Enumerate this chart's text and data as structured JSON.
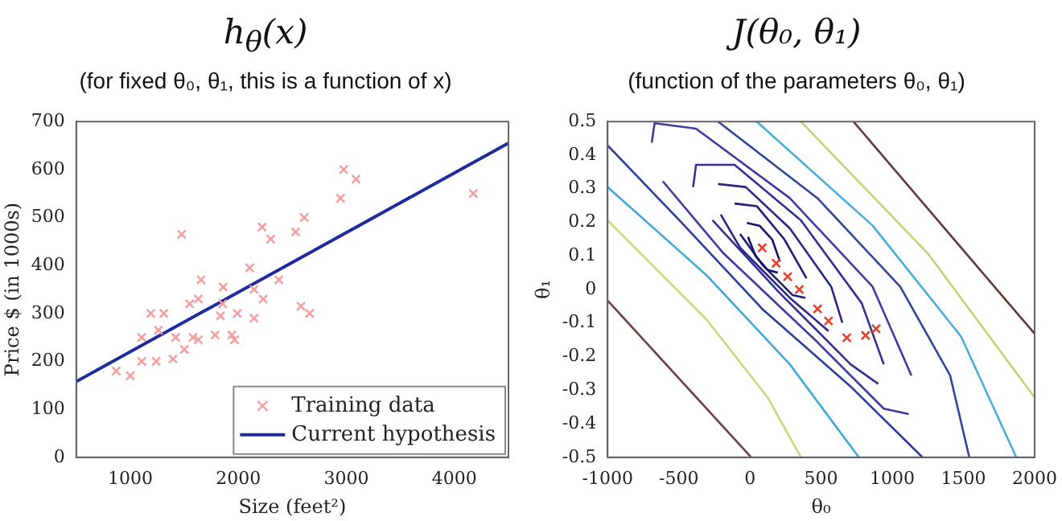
{
  "chart_data": [
    {
      "type": "scatter",
      "title": "h$_{θ}$(x)",
      "subtitle": "(for fixed θ₀, θ₁, this is a function of x)",
      "xlabel": "Size (feet²)",
      "ylabel": "Price $ (in 1000s)",
      "xlim": [
        500,
        4500
      ],
      "xticks": [
        1000,
        2000,
        3000,
        4000
      ],
      "ylim": [
        0,
        700
      ],
      "yticks": [
        0,
        100,
        200,
        300,
        400,
        500,
        600,
        700
      ],
      "grid": false,
      "legend": "bottom right",
      "series": [
        {
          "name": "Training data",
          "type": "scatter",
          "marker": "cross",
          "color": "#f2a0a0",
          "x": [
            1000,
            870,
            1105,
            1190,
            1310,
            1260,
            1105,
            1240,
            1395,
            1420,
            1500,
            1475,
            1550,
            1630,
            1655,
            1580,
            1630,
            1785,
            1855,
            1860,
            1835,
            1940,
            1965,
            1990,
            2105,
            2145,
            2220,
            2230,
            2300,
            2375,
            2530,
            2610,
            2580,
            2660,
            2945,
            2975,
            3090,
            4175,
            2145
          ],
          "values": [
            170,
            180,
            250,
            300,
            300,
            265,
            200,
            200,
            205,
            250,
            225,
            465,
            320,
            330,
            370,
            250,
            245,
            255,
            320,
            355,
            295,
            255,
            245,
            300,
            395,
            290,
            480,
            330,
            455,
            370,
            470,
            500,
            315,
            300,
            540,
            600,
            580,
            550,
            350
          ]
        },
        {
          "name": "Current hypothesis",
          "type": "line",
          "marker": "none",
          "color": "#1f2aa0",
          "x": [
            500,
            4500
          ],
          "values": [
            158,
            655
          ]
        }
      ]
    },
    {
      "type": "scatter",
      "title": "J(θ₀, θ₁)",
      "subtitle": "(function of the parameters θ₀, θ₁)",
      "xlabel": "θ₀",
      "ylabel": "θ₁",
      "xlim": [
        -1000,
        2000
      ],
      "xticks": [
        -1000,
        -500,
        0,
        500,
        1000,
        1500,
        2000
      ],
      "ylim": [
        -0.5,
        0.5
      ],
      "yticks": [
        -0.5,
        -0.4,
        -0.3,
        -0.2,
        -0.1,
        0,
        0.1,
        0.2,
        0.3,
        0.4,
        0.5
      ],
      "grid": false,
      "legend": false,
      "series": [
        {
          "type": "line",
          "marker": "none",
          "color": "#14146a",
          "x": [
            -22,
            67,
            156,
            211
          ],
          "values": [
            0.198,
            0.19,
            0.149,
            0.083
          ]
        },
        {
          "type": "line",
          "marker": "none",
          "color": "#14146a",
          "x": [
            -14,
            40,
            125,
            195
          ],
          "values": [
            0.157,
            0.099,
            0.058,
            0.05
          ]
        },
        {
          "type": "line",
          "marker": "none",
          "color": "#1e1e78",
          "x": [
            -108,
            48,
            242,
            397
          ],
          "values": [
            0.256,
            0.248,
            0.149,
            0.033
          ]
        },
        {
          "type": "line",
          "marker": "none",
          "color": "#1e1e78",
          "x": [
            -69,
            86,
            300,
            389
          ],
          "values": [
            0.165,
            0.074,
            -0.017,
            -0.025
          ]
        },
        {
          "type": "line",
          "marker": "none",
          "color": "#282886",
          "x": [
            -224,
            -30,
            280,
            571,
            649
          ],
          "values": [
            0.314,
            0.305,
            0.182,
            0.008,
            -0.099
          ]
        },
        {
          "type": "line",
          "marker": "none",
          "color": "#282886",
          "x": [
            -205,
            -69,
            280,
            552
          ],
          "values": [
            0.223,
            0.124,
            -0.025,
            -0.124
          ]
        },
        {
          "type": "line",
          "marker": "none",
          "color": "#323294",
          "x": [
            -399,
            -379,
            -108,
            358,
            785,
            940
          ],
          "values": [
            0.305,
            0.371,
            0.371,
            0.206,
            -0.041,
            -0.223
          ]
        },
        {
          "type": "line",
          "marker": "none",
          "color": "#323294",
          "x": [
            -263,
            203,
            707,
            901
          ],
          "values": [
            0.206,
            -0.008,
            -0.223,
            -0.281
          ]
        },
        {
          "type": "line",
          "marker": "none",
          "color": "#3c3ca2",
          "x": [
            -690,
            -670,
            -379,
            280,
            862,
            1134
          ],
          "values": [
            0.437,
            0.495,
            0.479,
            0.272,
            0.008,
            -0.256
          ]
        },
        {
          "type": "line",
          "marker": "none",
          "color": "#3c3ca2",
          "x": [
            -612,
            -185,
            474,
            940,
            1115
          ],
          "values": [
            0.322,
            0.107,
            -0.157,
            -0.355,
            -0.371
          ]
        },
        {
          "type": "line",
          "marker": "none",
          "color": "#2a3e9e",
          "x": [
            -1000,
            -496,
            86,
            707,
            1212
          ],
          "values": [
            0.429,
            0.206,
            -0.058,
            -0.289,
            -0.5
          ]
        },
        {
          "type": "line",
          "marker": "none",
          "color": "#30469a",
          "x": [
            -224,
            474,
            1056,
            1406,
            1541
          ],
          "values": [
            0.5,
            0.272,
            0.008,
            -0.256,
            -0.5
          ]
        },
        {
          "type": "line",
          "marker": "none",
          "color": "#3fa7d6",
          "x": [
            -1000,
            -302,
            280,
            765
          ],
          "values": [
            0.305,
            0.041,
            -0.223,
            -0.5
          ]
        },
        {
          "type": "line",
          "marker": "none",
          "color": "#48addb",
          "x": [
            48,
            862,
            1483,
            1871
          ],
          "values": [
            0.5,
            0.19,
            -0.14,
            -0.5
          ]
        },
        {
          "type": "line",
          "marker": "none",
          "color": "#c9d77c",
          "x": [
            -1000,
            -302,
            125,
            358
          ],
          "values": [
            0.206,
            -0.091,
            -0.322,
            -0.5
          ]
        },
        {
          "type": "line",
          "marker": "none",
          "color": "#c2d274",
          "x": [
            358,
            1250,
            2000
          ],
          "values": [
            0.5,
            0.107,
            -0.322
          ]
        },
        {
          "type": "line",
          "marker": "none",
          "color": "#6e3c3c",
          "x": [
            -1000,
            9
          ],
          "values": [
            -0.033,
            -0.5
          ]
        },
        {
          "type": "line",
          "marker": "none",
          "color": "#663636",
          "x": [
            727,
            2000
          ],
          "values": [
            0.5,
            -0.132
          ]
        },
        {
          "type": "scatter",
          "marker": "cross",
          "color": "#e5402a",
          "x": [
            86,
            184,
            265,
            347,
            475,
            552,
            680,
            812,
            886
          ],
          "values": [
            0.124,
            0.078,
            0.038,
            0,
            -0.058,
            -0.094,
            -0.144,
            -0.137,
            -0.117
          ]
        }
      ]
    }
  ]
}
